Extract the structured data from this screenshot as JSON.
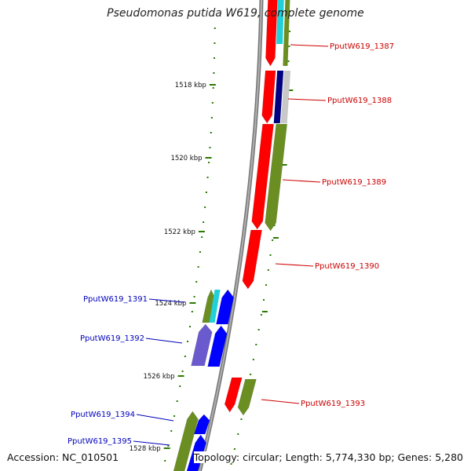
{
  "title": "Pseudomonas putida W619, complete genome",
  "footer": {
    "accession": "Accession: NC_010501",
    "topology": "Topology: circular; Length: 5,774,330 bp; Genes: 5,280"
  },
  "colors": {
    "forward_label": "#cc0000",
    "reverse_label": "#0000bb",
    "backbone": "#8a8a8a",
    "ticks": "#2a7a00",
    "red": "#ff0000",
    "olive": "#6b8e23",
    "cyan": "#22d0d8",
    "navy": "#000080",
    "blue": "#0000ff",
    "slate": "#6a5acd",
    "grey": "#c8c8c8"
  },
  "kbp_ticks": [
    {
      "label": "1518 kbp"
    },
    {
      "label": "1520 kbp"
    },
    {
      "label": "1522 kbp"
    },
    {
      "label": "1524 kbp"
    },
    {
      "label": "1526 kbp"
    },
    {
      "label": "1528 kbp"
    }
  ],
  "genes": [
    {
      "id": "PputW619_1387",
      "strand": "forward"
    },
    {
      "id": "PputW619_1388",
      "strand": "forward"
    },
    {
      "id": "PputW619_1389",
      "strand": "forward"
    },
    {
      "id": "PputW619_1390",
      "strand": "forward"
    },
    {
      "id": "PputW619_1391",
      "strand": "reverse"
    },
    {
      "id": "PputW619_1392",
      "strand": "reverse"
    },
    {
      "id": "PputW619_1393",
      "strand": "forward"
    },
    {
      "id": "PputW619_1394",
      "strand": "reverse"
    },
    {
      "id": "PputW619_1395",
      "strand": "reverse"
    }
  ]
}
